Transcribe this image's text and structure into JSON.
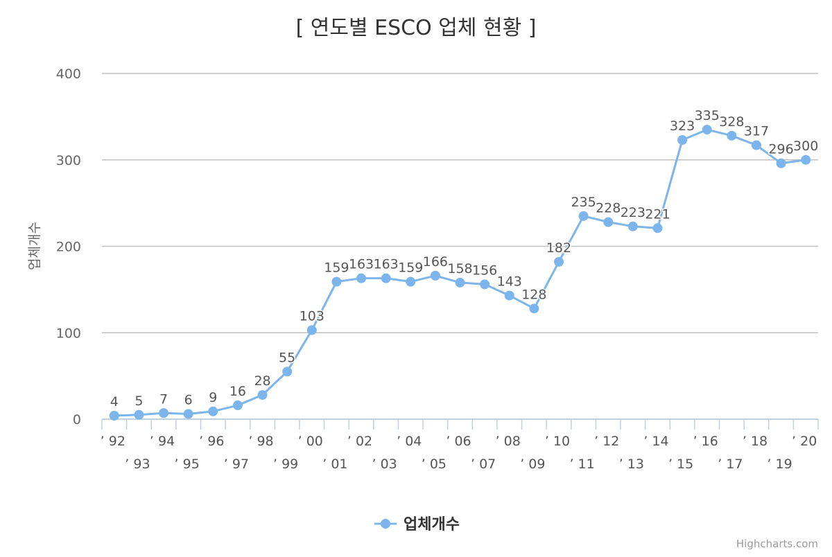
{
  "chart_data": {
    "type": "line",
    "title": "[ 연도별 ESCO 업체 현황 ]",
    "ylabel": "업체개수",
    "xlabel": "",
    "categories": [
      "’ 92",
      "’ 93",
      "’ 94",
      "’ 95",
      "’ 96",
      "’ 97",
      "’ 98",
      "’ 99",
      "’ 00",
      "’ 01",
      "’ 02",
      "’ 03",
      "’ 04",
      "’ 05",
      "’ 06",
      "’ 07",
      "’ 08",
      "’ 09",
      "’ 10",
      "’ 11",
      "’ 12",
      "’ 13",
      "’ 14",
      "’ 15",
      "’ 16",
      "’ 17",
      "’ 18",
      "’ 19",
      "’ 20"
    ],
    "series": [
      {
        "name": "업체개수",
        "color": "#7cb5ec",
        "values": [
          4,
          5,
          7,
          6,
          9,
          16,
          28,
          55,
          103,
          159,
          163,
          163,
          159,
          166,
          158,
          156,
          143,
          128,
          182,
          235,
          228,
          223,
          221,
          323,
          335,
          328,
          317,
          296,
          300
        ]
      }
    ],
    "ylim": [
      0,
      400
    ],
    "yticks": [
      0,
      100,
      200,
      300,
      400
    ],
    "grid": true,
    "data_labels": true,
    "legend": "bottom-center",
    "credits": "Highcharts.com"
  }
}
